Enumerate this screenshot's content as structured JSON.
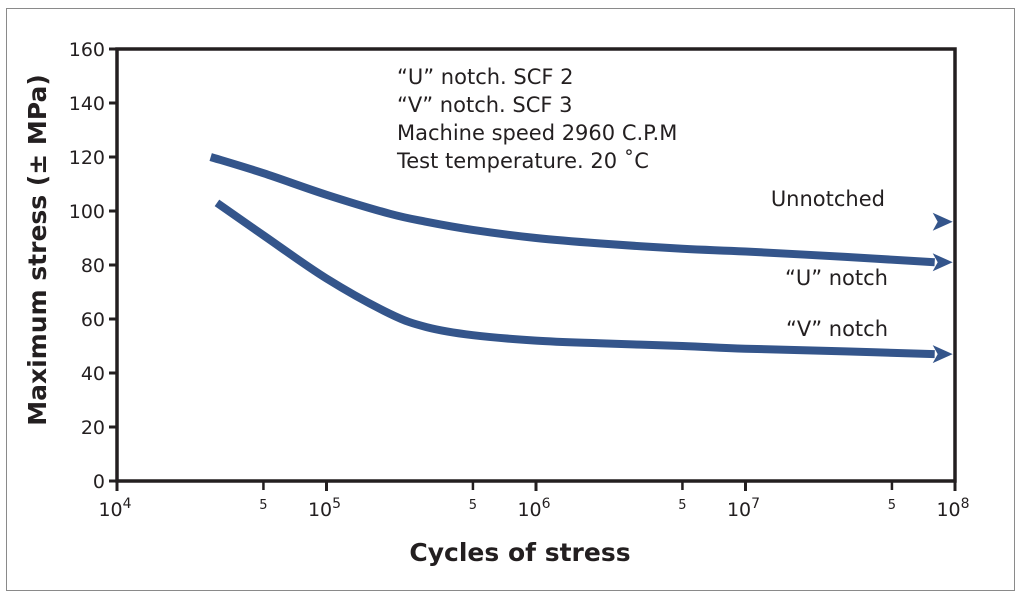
{
  "chart_data": {
    "type": "line",
    "title": "",
    "xlabel": "Cycles of stress",
    "ylabel": "Maximum stress (± MPa)",
    "xscale": "log",
    "xlim": [
      10000,
      100000000
    ],
    "ylim": [
      0,
      160
    ],
    "grid": false,
    "y_ticks": [
      0,
      20,
      40,
      60,
      80,
      100,
      120,
      140,
      160
    ],
    "x_major_ticks": [
      {
        "value": 10000,
        "base": "10",
        "exp": "4"
      },
      {
        "value": 100000,
        "base": "10",
        "exp": "5"
      },
      {
        "value": 1000000,
        "base": "10",
        "exp": "6"
      },
      {
        "value": 10000000,
        "base": "10",
        "exp": "7"
      },
      {
        "value": 100000000,
        "base": "10",
        "exp": "8"
      }
    ],
    "x_minor_ticks": [
      {
        "value": 50000,
        "label": "5"
      },
      {
        "value": 500000,
        "label": "5"
      },
      {
        "value": 5000000,
        "label": "5"
      },
      {
        "value": 50000000,
        "label": "5"
      }
    ],
    "annotations": [
      "“U” notch. SCF 2",
      "“V” notch. SCF 3",
      "Machine speed 2960 C.P.M",
      "Test temperature. 20 ˚C"
    ],
    "series_color": "#34558b",
    "series": [
      {
        "name": "Unnotched",
        "label": "Unnotched",
        "marker_only": true,
        "x": [
          80000000
        ],
        "y": [
          96
        ]
      },
      {
        "name": "“U” notch",
        "label": "“U” notch",
        "x": [
          28000,
          50000,
          100000,
          200000,
          300000,
          500000,
          1000000,
          2000000,
          5000000,
          10000000,
          30000000,
          80000000
        ],
        "y": [
          120,
          114,
          106,
          99,
          96,
          93,
          90,
          88,
          86,
          85,
          83,
          81
        ]
      },
      {
        "name": "“V” notch",
        "label": "“V” notch",
        "x": [
          30000,
          50000,
          100000,
          200000,
          300000,
          500000,
          1000000,
          2000000,
          5000000,
          10000000,
          30000000,
          80000000
        ],
        "y": [
          103,
          91,
          75,
          62,
          57,
          54,
          52,
          51,
          50,
          49,
          48,
          47
        ]
      }
    ]
  }
}
